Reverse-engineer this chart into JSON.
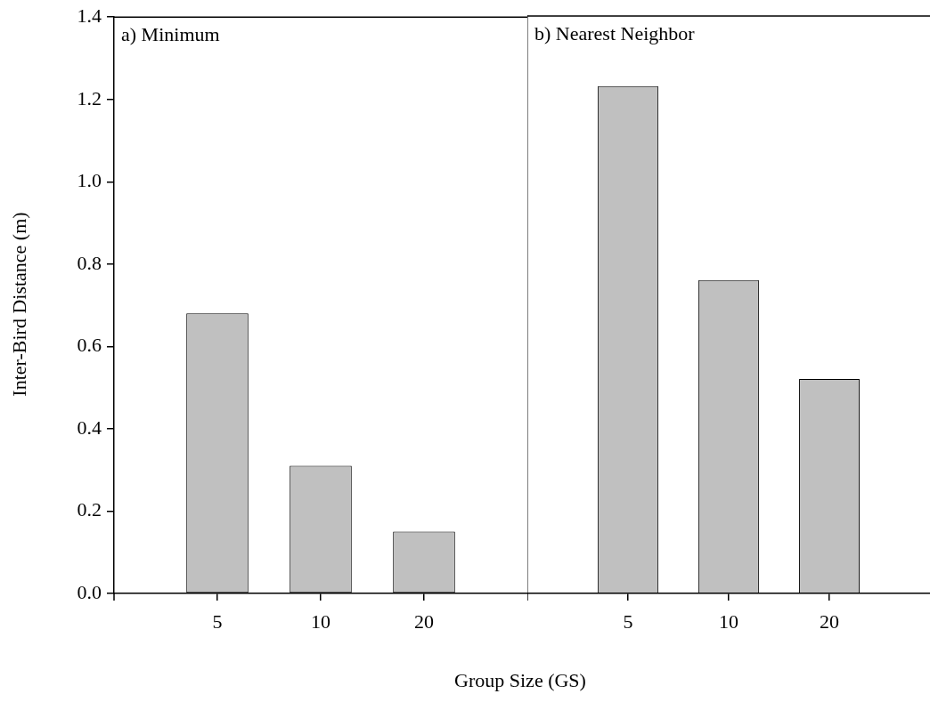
{
  "chart_data": [
    {
      "type": "bar",
      "title": "a) Minimum",
      "xlabel": "Group Size (GS)",
      "ylabel": "Inter-Bird Distance (m)",
      "categories": [
        "5",
        "10",
        "20"
      ],
      "values": [
        0.68,
        0.31,
        0.15
      ],
      "color": "#c0c0c0",
      "ylim": [
        0,
        1.4
      ],
      "yticks": [
        {
          "value": 0,
          "label": "0.0"
        },
        {
          "value": 0.2,
          "label": "0.2"
        },
        {
          "value": 0.4,
          "label": "0.4"
        },
        {
          "value": 0.6,
          "label": "0.6"
        },
        {
          "value": 0.8,
          "label": "0.8"
        },
        {
          "value": 1.0,
          "label": "1.0"
        },
        {
          "value": 1.2,
          "label": "1.2"
        },
        {
          "value": 1.4,
          "label": "1.4"
        }
      ],
      "grid": false,
      "legend": false
    },
    {
      "type": "bar",
      "title": "b) Nearest Neighbor",
      "categories": [
        "5",
        "10",
        "20"
      ],
      "values": [
        1.23,
        0.76,
        0.52
      ],
      "color": "#c0c0c0",
      "ylim": [
        0,
        1.4
      ],
      "grid": false,
      "legend": false,
      "tick_labels": "x"
    }
  ]
}
